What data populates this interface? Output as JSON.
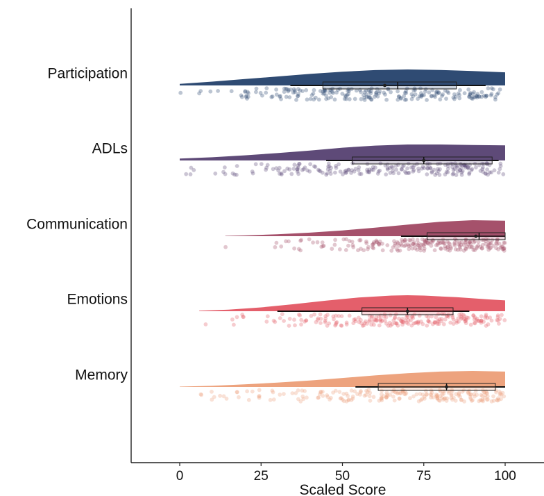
{
  "chart_data": {
    "type": "raincloud",
    "title": "",
    "xlabel": "Scaled Score",
    "ylabel": "",
    "xlim": [
      -15,
      108
    ],
    "xticks": [
      0,
      25,
      50,
      75,
      100
    ],
    "xtick_labels": [
      "0",
      "25",
      "50",
      "75",
      "100"
    ],
    "grid": false,
    "legend": "none",
    "categories": [
      "Participation",
      "ADLs",
      "Communication",
      "Emotions",
      "Memory"
    ],
    "series": [
      {
        "name": "Participation",
        "color": "#2f4b73",
        "density_points": [
          [
            0,
            0.1
          ],
          [
            10,
            0.24
          ],
          [
            20,
            0.4
          ],
          [
            30,
            0.56
          ],
          [
            40,
            0.72
          ],
          [
            50,
            0.86
          ],
          [
            60,
            0.96
          ],
          [
            70,
            1.0
          ],
          [
            80,
            0.97
          ],
          [
            90,
            0.9
          ],
          [
            100,
            0.82
          ]
        ],
        "box": {
          "whisker_low": 34,
          "q1": 44,
          "median": 67,
          "q3": 85,
          "whisker_high": 94,
          "mean": 63
        },
        "points_range": [
          0,
          100
        ]
      },
      {
        "name": "ADLs",
        "color": "#5e4a78",
        "density_points": [
          [
            0,
            0.12
          ],
          [
            10,
            0.2
          ],
          [
            20,
            0.32
          ],
          [
            30,
            0.46
          ],
          [
            40,
            0.62
          ],
          [
            50,
            0.8
          ],
          [
            60,
            0.93
          ],
          [
            70,
            1.0
          ],
          [
            80,
            1.0
          ],
          [
            90,
            0.97
          ],
          [
            100,
            0.95
          ]
        ],
        "box": {
          "whisker_low": 45,
          "q1": 53,
          "median": 75,
          "q3": 96,
          "whisker_high": 98,
          "mean": 75
        },
        "points_range": [
          0,
          100
        ]
      },
      {
        "name": "Communication",
        "color": "#a5516b",
        "density_points": [
          [
            14,
            0.02
          ],
          [
            20,
            0.05
          ],
          [
            30,
            0.12
          ],
          [
            40,
            0.22
          ],
          [
            50,
            0.36
          ],
          [
            60,
            0.53
          ],
          [
            70,
            0.72
          ],
          [
            80,
            0.9
          ],
          [
            90,
            1.0
          ],
          [
            100,
            0.97
          ]
        ],
        "box": {
          "whisker_low": 68,
          "q1": 76,
          "median": 92,
          "q3": 100,
          "whisker_high": 100,
          "mean": 91
        },
        "points_range": [
          13,
          100
        ]
      },
      {
        "name": "Emotions",
        "color": "#e45f6b",
        "density_points": [
          [
            6,
            0.03
          ],
          [
            15,
            0.1
          ],
          [
            25,
            0.24
          ],
          [
            35,
            0.44
          ],
          [
            45,
            0.66
          ],
          [
            55,
            0.86
          ],
          [
            65,
            0.98
          ],
          [
            70,
            1.0
          ],
          [
            75,
            0.98
          ],
          [
            85,
            0.88
          ],
          [
            95,
            0.74
          ],
          [
            100,
            0.68
          ]
        ],
        "box": {
          "whisker_low": 30,
          "q1": 56,
          "median": 70,
          "q3": 84,
          "whisker_high": 89,
          "mean": 70
        },
        "points_range": [
          5,
          100
        ]
      },
      {
        "name": "Memory",
        "color": "#eda37e",
        "density_points": [
          [
            0,
            0.02
          ],
          [
            10,
            0.07
          ],
          [
            20,
            0.16
          ],
          [
            30,
            0.27
          ],
          [
            40,
            0.4
          ],
          [
            50,
            0.56
          ],
          [
            60,
            0.72
          ],
          [
            70,
            0.86
          ],
          [
            80,
            0.96
          ],
          [
            90,
            1.0
          ],
          [
            100,
            0.96
          ]
        ],
        "box": {
          "whisker_low": 54,
          "q1": 61,
          "median": 82,
          "q3": 97,
          "whisker_high": 100,
          "mean": 82
        },
        "points_range": [
          0,
          100
        ]
      }
    ]
  }
}
